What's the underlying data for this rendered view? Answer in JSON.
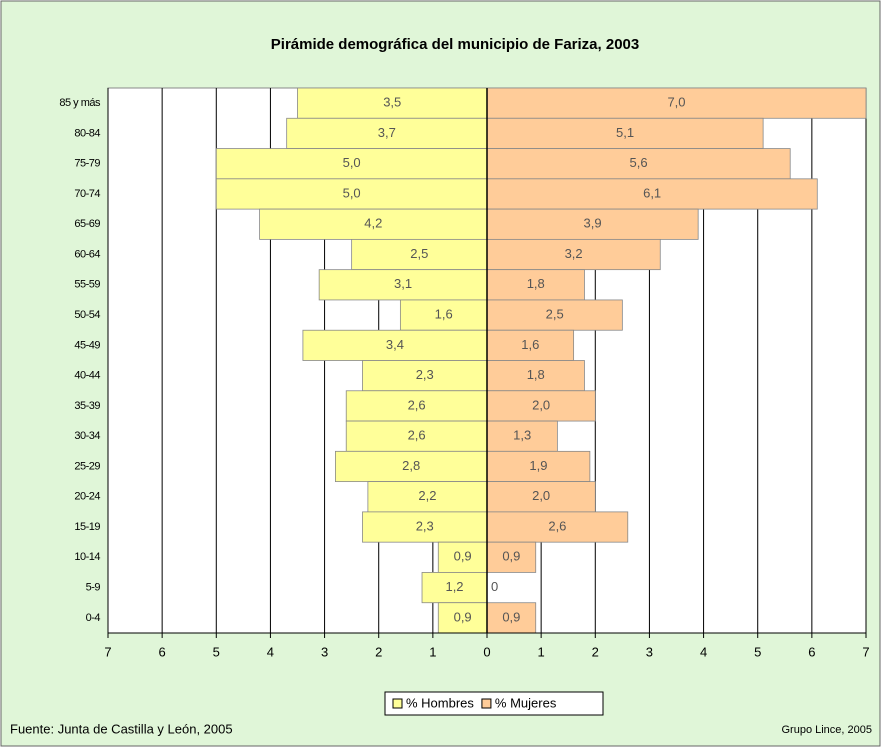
{
  "chart_data": {
    "type": "pyramid",
    "title": "Pirámide demográfica del municipio de Fariza, 2003",
    "categories": [
      "85 y más",
      "80-84",
      "75-79",
      "70-74",
      "65-69",
      "60-64",
      "55-59",
      "50-54",
      "45-49",
      "40-44",
      "35-39",
      "30-34",
      "25-29",
      "20-24",
      "15-19",
      "10-14",
      "5-9",
      "0-4"
    ],
    "series": [
      {
        "name": "% Hombres",
        "color": "#ffff99",
        "side": "left",
        "values": [
          3.5,
          3.7,
          5.0,
          5.0,
          4.2,
          2.5,
          3.1,
          1.6,
          3.4,
          2.3,
          2.6,
          2.6,
          2.8,
          2.2,
          2.3,
          0.9,
          1.2,
          0.9
        ],
        "value_labels": [
          "3,5",
          "3,7",
          "5,0",
          "5,0",
          "4,2",
          "2,5",
          "3,1",
          "1,6",
          "3,4",
          "2,3",
          "2,6",
          "2,6",
          "2,8",
          "2,2",
          "2,3",
          "0,9",
          "1,2",
          "0,9"
        ]
      },
      {
        "name": "% Mujeres",
        "color": "#ffcc99",
        "side": "right",
        "values": [
          7.0,
          5.1,
          5.6,
          6.1,
          3.9,
          3.2,
          1.8,
          2.5,
          1.6,
          1.8,
          2.0,
          1.3,
          1.9,
          2.0,
          2.6,
          0.9,
          0,
          0.9
        ],
        "value_labels": [
          "7,0",
          "5,1",
          "5,6",
          "6,1",
          "3,9",
          "3,2",
          "1,8",
          "2,5",
          "1,6",
          "1,8",
          "2,0",
          "1,3",
          "1,9",
          "2,0",
          "2,6",
          "0,9",
          "0",
          "0,9"
        ]
      }
    ],
    "xlim": [
      -7,
      7
    ],
    "xticks": [
      {
        "value": -7,
        "label": "7"
      },
      {
        "value": -6,
        "label": "6"
      },
      {
        "value": -5,
        "label": "5"
      },
      {
        "value": -4,
        "label": "4"
      },
      {
        "value": -3,
        "label": "3"
      },
      {
        "value": -2,
        "label": "2"
      },
      {
        "value": -1,
        "label": "1"
      },
      0,
      1,
      2,
      3,
      4,
      5,
      6,
      7
    ],
    "grid": true,
    "legend": "bottom",
    "source": "Fuente: Junta de Castilla y León, 2005",
    "credit": "Grupo Lince, 2005"
  }
}
